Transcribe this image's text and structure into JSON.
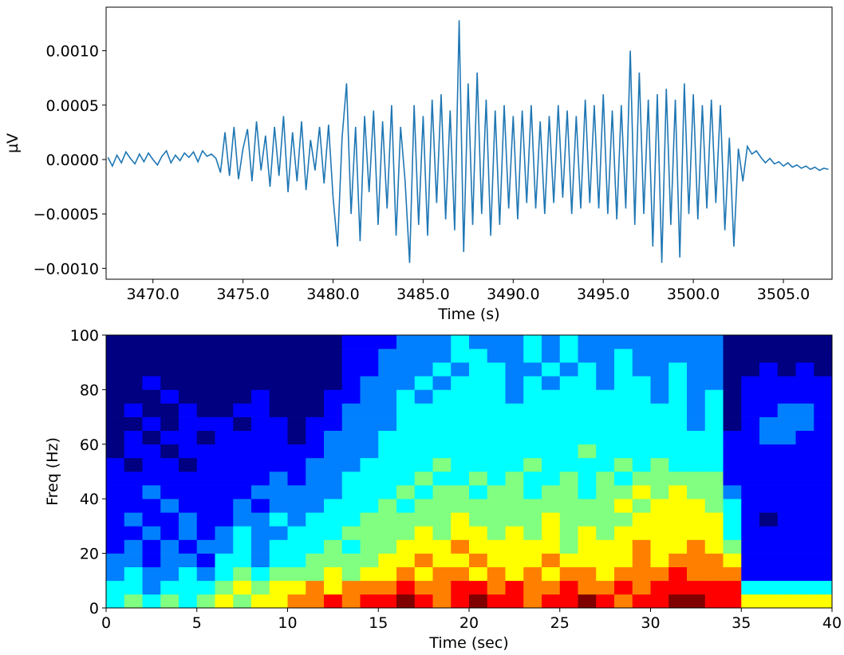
{
  "chart_data": [
    {
      "type": "line",
      "xlabel": "Time (s)",
      "ylabel": "µV",
      "color": "#1f77b4",
      "xlim": [
        3467.4,
        3507.7
      ],
      "ylim": [
        -0.0011,
        0.0014
      ],
      "xticks": [
        {
          "value": 3470,
          "label": "3470.0"
        },
        {
          "value": 3475,
          "label": "3475.0"
        },
        {
          "value": 3480,
          "label": "3480.0"
        },
        {
          "value": 3485,
          "label": "3485.0"
        },
        {
          "value": 3490,
          "label": "3490.0"
        },
        {
          "value": 3495,
          "label": "3495.0"
        },
        {
          "value": 3500,
          "label": "3500.0"
        },
        {
          "value": 3505,
          "label": "3505.0"
        }
      ],
      "yticks": [
        {
          "value": -0.001,
          "label": "−0.0010"
        },
        {
          "value": -0.0005,
          "label": "−0.0005"
        },
        {
          "value": 0,
          "label": "0.0000"
        },
        {
          "value": 0.0005,
          "label": "0.0005"
        },
        {
          "value": 0.001,
          "label": "0.0010"
        }
      ],
      "x": [
        3467.5,
        3467.75,
        3468,
        3468.25,
        3468.5,
        3468.75,
        3469,
        3469.25,
        3469.5,
        3469.75,
        3470,
        3470.25,
        3470.5,
        3470.75,
        3471,
        3471.25,
        3471.5,
        3471.75,
        3472,
        3472.25,
        3472.5,
        3472.75,
        3473,
        3473.25,
        3473.5,
        3473.75,
        3474,
        3474.25,
        3474.5,
        3474.75,
        3475,
        3475.25,
        3475.5,
        3475.75,
        3476,
        3476.25,
        3476.5,
        3476.75,
        3477,
        3477.25,
        3477.5,
        3477.75,
        3478,
        3478.25,
        3478.5,
        3478.75,
        3479,
        3479.25,
        3479.5,
        3479.75,
        3480,
        3480.25,
        3480.5,
        3480.75,
        3481,
        3481.25,
        3481.5,
        3481.75,
        3482,
        3482.25,
        3482.5,
        3482.75,
        3483,
        3483.25,
        3483.5,
        3483.75,
        3484,
        3484.25,
        3484.5,
        3484.75,
        3485,
        3485.25,
        3485.5,
        3485.75,
        3486,
        3486.25,
        3486.5,
        3486.75,
        3487,
        3487.25,
        3487.5,
        3487.75,
        3488,
        3488.25,
        3488.5,
        3488.75,
        3489,
        3489.25,
        3489.5,
        3489.75,
        3490,
        3490.25,
        3490.5,
        3490.75,
        3491,
        3491.25,
        3491.5,
        3491.75,
        3492,
        3492.25,
        3492.5,
        3492.75,
        3493,
        3493.25,
        3493.5,
        3493.75,
        3494,
        3494.25,
        3494.5,
        3494.75,
        3495,
        3495.25,
        3495.5,
        3495.75,
        3496,
        3496.25,
        3496.5,
        3496.75,
        3497,
        3497.25,
        3497.5,
        3497.75,
        3498,
        3498.25,
        3498.5,
        3498.75,
        3499,
        3499.25,
        3499.5,
        3499.75,
        3500,
        3500.25,
        3500.5,
        3500.75,
        3501,
        3501.25,
        3501.5,
        3501.75,
        3502,
        3502.25,
        3502.5,
        3502.75,
        3503,
        3503.25,
        3503.5,
        3503.75,
        3504,
        3504.25,
        3504.5,
        3504.75,
        3505,
        3505.25,
        3505.5,
        3505.75,
        3506,
        3506.25,
        3506.5,
        3506.75,
        3507,
        3507.25,
        3507.5
      ],
      "values": [
        2e-05,
        -6e-05,
        4e-05,
        -3e-05,
        7e-05,
        1e-05,
        -4e-05,
        5e-05,
        -2e-05,
        6e-05,
        0,
        -5e-05,
        3e-05,
        8e-05,
        -3e-05,
        4e-05,
        -1e-05,
        6e-05,
        2e-05,
        7e-05,
        -2e-05,
        8e-05,
        3e-05,
        5e-05,
        1e-05,
        -0.00012,
        0.00025,
        -0.00015,
        0.0003,
        -0.00018,
        0.0001,
        0.00028,
        -0.0002,
        0.00035,
        -0.0001,
        0.00022,
        -0.00025,
        0.0003,
        -0.00015,
        0.0004,
        -0.0003,
        0.00025,
        -0.0002,
        0.00035,
        -0.00028,
        0.00018,
        -0.0001,
        0.0003,
        -0.00022,
        0.00032,
        -0.00035,
        -0.0008,
        0.0002,
        0.0007,
        -0.0005,
        0.0003,
        -0.00075,
        0.0004,
        -0.0003,
        0.00045,
        -0.0006,
        0.00035,
        -0.00045,
        0.0005,
        -0.0007,
        0.0003,
        -0.0002,
        -0.00095,
        0.0005,
        -0.0006,
        0.0004,
        -0.0007,
        0.00055,
        -0.0004,
        0.0006,
        -0.00055,
        0.00045,
        -0.00065,
        0.00128,
        -0.00085,
        0.0007,
        -0.0006,
        0.0008,
        -0.0005,
        0.00055,
        -0.0007,
        0.00045,
        -0.0006,
        0.0005,
        -0.00045,
        0.0004,
        -0.00055,
        0.00045,
        -0.0004,
        0.0005,
        -0.00045,
        0.00035,
        -0.0005,
        0.0004,
        -0.0004,
        0.0005,
        -0.00035,
        0.00045,
        -0.0005,
        0.0004,
        -0.00045,
        0.00055,
        -0.0004,
        0.0005,
        -0.00045,
        0.0006,
        -0.0005,
        0.00045,
        -0.00055,
        0.0005,
        -0.00045,
        0.001,
        -0.0006,
        0.0008,
        -0.0005,
        0.00055,
        -0.0008,
        0.0006,
        -0.00095,
        0.00065,
        -0.0006,
        0.00055,
        -0.0009,
        0.0007,
        -0.0005,
        0.0006,
        -0.00055,
        0.0005,
        -0.00045,
        0.00055,
        -0.0004,
        0.0005,
        -0.00065,
        0.0002,
        -0.0008,
        0.0001,
        -0.0002,
        0.00012,
        5e-05,
        8e-05,
        2e-05,
        -3e-05,
        1e-05,
        -4e-05,
        -2e-05,
        -6e-05,
        -3e-05,
        -7e-05,
        -5e-05,
        -8e-05,
        -6e-05,
        -9e-05,
        -7e-05,
        -0.0001,
        -8e-05,
        -9e-05
      ]
    },
    {
      "type": "heatmap",
      "xlabel": "Time (sec)",
      "ylabel": "Freq (Hz)",
      "colormap": "jet",
      "xlim": [
        0,
        40
      ],
      "ylim": [
        0,
        100
      ],
      "xticks": [
        0,
        5,
        10,
        15,
        20,
        25,
        30,
        35,
        40
      ],
      "yticks": [
        0,
        20,
        40,
        60,
        80,
        100
      ],
      "z": [
        [
          4,
          5,
          4,
          5,
          4,
          5,
          6,
          5,
          6,
          6,
          7,
          7,
          8,
          7,
          8,
          8,
          9,
          8,
          7,
          8,
          9,
          8,
          8,
          7,
          8,
          8,
          9,
          8,
          7,
          8,
          8,
          9,
          9,
          8,
          8,
          6,
          6,
          6,
          6,
          6
        ],
        [
          4,
          4,
          3,
          4,
          4,
          4,
          5,
          6,
          5,
          6,
          6,
          7,
          6,
          7,
          7,
          7,
          8,
          7,
          7,
          8,
          8,
          7,
          8,
          7,
          7,
          8,
          7,
          7,
          8,
          7,
          8,
          8,
          8,
          8,
          8,
          4,
          4,
          4,
          4,
          4
        ],
        [
          3,
          4,
          3,
          3,
          4,
          3,
          4,
          5,
          4,
          5,
          5,
          5,
          6,
          5,
          6,
          6,
          7,
          6,
          7,
          7,
          6,
          7,
          6,
          7,
          6,
          7,
          7,
          6,
          7,
          7,
          7,
          8,
          7,
          7,
          7,
          2,
          2,
          2,
          2,
          2
        ],
        [
          3,
          3,
          2,
          3,
          3,
          2,
          4,
          4,
          3,
          4,
          4,
          5,
          5,
          5,
          5,
          6,
          6,
          7,
          6,
          6,
          7,
          6,
          6,
          6,
          7,
          6,
          6,
          6,
          6,
          7,
          6,
          7,
          7,
          7,
          6,
          2,
          2,
          2,
          2,
          2
        ],
        [
          2,
          3,
          2,
          3,
          2,
          3,
          3,
          4,
          3,
          4,
          4,
          4,
          5,
          4,
          5,
          5,
          6,
          6,
          6,
          7,
          6,
          6,
          6,
          6,
          6,
          5,
          6,
          6,
          6,
          7,
          6,
          6,
          7,
          6,
          5,
          2,
          2,
          2,
          2,
          2
        ],
        [
          2,
          2,
          3,
          2,
          3,
          2,
          3,
          4,
          3,
          3,
          4,
          4,
          4,
          5,
          5,
          5,
          5,
          6,
          5,
          6,
          6,
          5,
          6,
          5,
          6,
          5,
          6,
          5,
          6,
          6,
          6,
          6,
          6,
          6,
          4,
          2,
          2,
          2,
          2,
          2
        ],
        [
          2,
          3,
          2,
          2,
          3,
          2,
          2,
          3,
          3,
          4,
          3,
          4,
          4,
          4,
          5,
          5,
          5,
          5,
          5,
          6,
          5,
          5,
          5,
          5,
          6,
          5,
          5,
          5,
          5,
          6,
          6,
          6,
          6,
          6,
          4,
          2,
          1,
          2,
          2,
          2
        ],
        [
          2,
          2,
          2,
          3,
          2,
          2,
          2,
          3,
          2,
          3,
          3,
          3,
          4,
          4,
          4,
          5,
          4,
          5,
          5,
          5,
          5,
          5,
          5,
          5,
          5,
          5,
          5,
          5,
          6,
          5,
          6,
          6,
          6,
          5,
          4,
          2,
          2,
          2,
          2,
          2
        ],
        [
          2,
          2,
          3,
          2,
          2,
          2,
          2,
          2,
          3,
          3,
          3,
          3,
          3,
          4,
          4,
          4,
          5,
          4,
          5,
          5,
          4,
          5,
          5,
          4,
          5,
          5,
          4,
          5,
          5,
          6,
          5,
          6,
          5,
          5,
          3,
          2,
          2,
          2,
          2,
          2
        ],
        [
          2,
          2,
          2,
          2,
          2,
          2,
          2,
          2,
          2,
          3,
          2,
          3,
          3,
          4,
          4,
          4,
          4,
          5,
          4,
          4,
          5,
          4,
          5,
          4,
          4,
          5,
          4,
          5,
          4,
          5,
          5,
          5,
          5,
          5,
          2,
          2,
          2,
          2,
          2,
          2
        ],
        [
          2,
          1,
          2,
          2,
          1,
          2,
          2,
          2,
          2,
          2,
          2,
          3,
          3,
          3,
          4,
          4,
          4,
          4,
          5,
          4,
          4,
          4,
          4,
          5,
          4,
          4,
          4,
          4,
          5,
          4,
          5,
          4,
          4,
          4,
          2,
          2,
          2,
          2,
          2,
          2
        ],
        [
          1,
          2,
          2,
          1,
          2,
          2,
          2,
          2,
          2,
          2,
          2,
          2,
          3,
          3,
          3,
          4,
          4,
          4,
          4,
          4,
          4,
          4,
          4,
          4,
          4,
          4,
          5,
          4,
          4,
          4,
          4,
          4,
          4,
          4,
          2,
          2,
          2,
          2,
          2,
          2
        ],
        [
          1,
          2,
          1,
          2,
          2,
          1,
          2,
          2,
          2,
          2,
          1,
          2,
          3,
          3,
          3,
          4,
          4,
          4,
          4,
          4,
          4,
          4,
          4,
          4,
          4,
          4,
          4,
          4,
          4,
          4,
          4,
          4,
          4,
          4,
          2,
          2,
          3,
          3,
          2,
          2
        ],
        [
          1,
          1,
          2,
          1,
          2,
          2,
          2,
          1,
          2,
          2,
          1,
          2,
          2,
          3,
          3,
          3,
          4,
          4,
          4,
          4,
          4,
          4,
          4,
          4,
          4,
          4,
          4,
          4,
          4,
          4,
          4,
          4,
          3,
          4,
          1,
          2,
          3,
          3,
          3,
          2
        ],
        [
          1,
          2,
          1,
          1,
          2,
          1,
          1,
          2,
          2,
          1,
          1,
          1,
          2,
          3,
          3,
          3,
          4,
          4,
          4,
          4,
          4,
          4,
          4,
          4,
          4,
          4,
          4,
          4,
          4,
          4,
          4,
          4,
          3,
          4,
          1,
          2,
          2,
          3,
          3,
          2
        ],
        [
          1,
          1,
          1,
          2,
          1,
          1,
          1,
          1,
          2,
          1,
          1,
          1,
          2,
          2,
          3,
          3,
          4,
          3,
          4,
          4,
          4,
          4,
          3,
          4,
          4,
          4,
          4,
          4,
          4,
          4,
          3,
          4,
          3,
          4,
          1,
          2,
          2,
          2,
          2,
          2
        ],
        [
          1,
          1,
          2,
          1,
          1,
          1,
          1,
          1,
          1,
          1,
          1,
          1,
          1,
          2,
          3,
          3,
          3,
          4,
          3,
          4,
          4,
          4,
          3,
          4,
          3,
          4,
          4,
          3,
          4,
          4,
          3,
          4,
          3,
          3,
          1,
          2,
          2,
          2,
          2,
          2
        ],
        [
          1,
          1,
          1,
          1,
          1,
          1,
          1,
          1,
          1,
          1,
          1,
          1,
          1,
          2,
          2,
          3,
          3,
          3,
          4,
          3,
          4,
          4,
          3,
          3,
          4,
          3,
          4,
          3,
          4,
          3,
          3,
          4,
          3,
          3,
          1,
          1,
          2,
          1,
          2,
          1
        ],
        [
          1,
          1,
          1,
          1,
          1,
          1,
          1,
          1,
          1,
          1,
          1,
          1,
          1,
          2,
          2,
          3,
          3,
          3,
          3,
          4,
          4,
          3,
          3,
          4,
          3,
          4,
          3,
          3,
          4,
          3,
          3,
          3,
          3,
          3,
          1,
          1,
          1,
          1,
          1,
          1
        ],
        [
          1,
          1,
          1,
          1,
          1,
          1,
          1,
          1,
          1,
          1,
          1,
          1,
          1,
          2,
          2,
          2,
          3,
          3,
          3,
          4,
          3,
          3,
          3,
          4,
          3,
          4,
          3,
          3,
          3,
          3,
          3,
          3,
          3,
          3,
          1,
          1,
          1,
          1,
          1,
          1
        ]
      ]
    }
  ]
}
